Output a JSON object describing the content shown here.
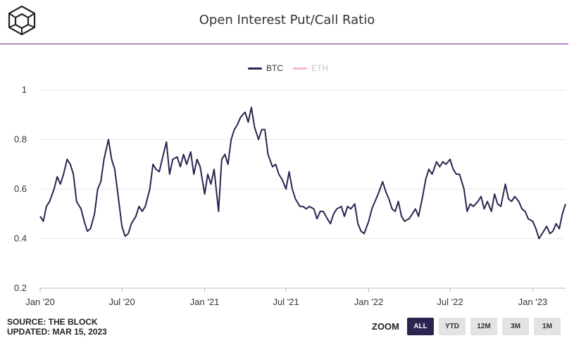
{
  "header": {
    "title": "Open Interest Put/Call Ratio"
  },
  "footer": {
    "source": "SOURCE: THE BLOCK",
    "updated": "UPDATED: MAR 15, 2023"
  },
  "zoom": {
    "label": "ZOOM",
    "buttons": [
      "ALL",
      "YTD",
      "12M",
      "3M",
      "1M"
    ],
    "active": "ALL"
  },
  "colors": {
    "accent": "#6b1f86",
    "btc": "#2a2550",
    "eth": "#f4b8c8",
    "grid": "#e6e6e6"
  },
  "chart_data": {
    "type": "line",
    "title": "Open Interest Put/Call Ratio",
    "xlabel": "",
    "ylabel": "",
    "ylim": [
      0.2,
      1
    ],
    "yticks": [
      0.2,
      0.4,
      0.6,
      0.8,
      1
    ],
    "ytick_labels": [
      "0.2",
      "0.4",
      "0.6",
      "0.8",
      "1"
    ],
    "xlim": [
      "2020-01-01",
      "2023-03-15"
    ],
    "xticks": [
      {
        "date": "2020-01-01",
        "label": "Jan '20"
      },
      {
        "date": "2020-07-01",
        "label": "Jul '20"
      },
      {
        "date": "2021-01-01",
        "label": "Jan '21"
      },
      {
        "date": "2021-07-01",
        "label": "Jul '21"
      },
      {
        "date": "2022-01-01",
        "label": "Jan '22"
      },
      {
        "date": "2022-07-01",
        "label": "Jul '22"
      },
      {
        "date": "2023-01-01",
        "label": "Jan '23"
      }
    ],
    "grid": true,
    "legend_position": "top-center",
    "series": [
      {
        "name": "BTC",
        "visible": true,
        "points": [
          [
            "2020-01-01",
            0.49
          ],
          [
            "2020-01-08",
            0.47
          ],
          [
            "2020-01-15",
            0.53
          ],
          [
            "2020-01-22",
            0.55
          ],
          [
            "2020-02-01",
            0.6
          ],
          [
            "2020-02-08",
            0.65
          ],
          [
            "2020-02-15",
            0.62
          ],
          [
            "2020-02-22",
            0.66
          ],
          [
            "2020-03-01",
            0.72
          ],
          [
            "2020-03-08",
            0.7
          ],
          [
            "2020-03-15",
            0.66
          ],
          [
            "2020-03-22",
            0.55
          ],
          [
            "2020-04-01",
            0.52
          ],
          [
            "2020-04-08",
            0.47
          ],
          [
            "2020-04-15",
            0.43
          ],
          [
            "2020-04-22",
            0.44
          ],
          [
            "2020-05-01",
            0.5
          ],
          [
            "2020-05-08",
            0.6
          ],
          [
            "2020-05-15",
            0.63
          ],
          [
            "2020-05-22",
            0.72
          ],
          [
            "2020-06-01",
            0.8
          ],
          [
            "2020-06-08",
            0.72
          ],
          [
            "2020-06-15",
            0.68
          ],
          [
            "2020-06-22",
            0.58
          ],
          [
            "2020-07-01",
            0.45
          ],
          [
            "2020-07-08",
            0.41
          ],
          [
            "2020-07-15",
            0.42
          ],
          [
            "2020-07-22",
            0.46
          ],
          [
            "2020-08-01",
            0.49
          ],
          [
            "2020-08-08",
            0.53
          ],
          [
            "2020-08-15",
            0.51
          ],
          [
            "2020-08-22",
            0.53
          ],
          [
            "2020-09-01",
            0.6
          ],
          [
            "2020-09-08",
            0.7
          ],
          [
            "2020-09-15",
            0.68
          ],
          [
            "2020-09-22",
            0.67
          ],
          [
            "2020-10-01",
            0.74
          ],
          [
            "2020-10-08",
            0.79
          ],
          [
            "2020-10-15",
            0.66
          ],
          [
            "2020-10-22",
            0.72
          ],
          [
            "2020-11-01",
            0.73
          ],
          [
            "2020-11-08",
            0.69
          ],
          [
            "2020-11-15",
            0.74
          ],
          [
            "2020-11-22",
            0.7
          ],
          [
            "2020-12-01",
            0.75
          ],
          [
            "2020-12-08",
            0.66
          ],
          [
            "2020-12-15",
            0.72
          ],
          [
            "2020-12-22",
            0.69
          ],
          [
            "2021-01-01",
            0.58
          ],
          [
            "2021-01-08",
            0.66
          ],
          [
            "2021-01-15",
            0.62
          ],
          [
            "2021-01-22",
            0.68
          ],
          [
            "2021-02-01",
            0.51
          ],
          [
            "2021-02-08",
            0.72
          ],
          [
            "2021-02-15",
            0.74
          ],
          [
            "2021-02-22",
            0.7
          ],
          [
            "2021-03-01",
            0.8
          ],
          [
            "2021-03-08",
            0.84
          ],
          [
            "2021-03-15",
            0.86
          ],
          [
            "2021-03-22",
            0.89
          ],
          [
            "2021-04-01",
            0.91
          ],
          [
            "2021-04-08",
            0.87
          ],
          [
            "2021-04-15",
            0.93
          ],
          [
            "2021-04-22",
            0.85
          ],
          [
            "2021-05-01",
            0.8
          ],
          [
            "2021-05-08",
            0.84
          ],
          [
            "2021-05-15",
            0.84
          ],
          [
            "2021-05-22",
            0.74
          ],
          [
            "2021-06-01",
            0.69
          ],
          [
            "2021-06-08",
            0.7
          ],
          [
            "2021-06-15",
            0.66
          ],
          [
            "2021-06-22",
            0.64
          ],
          [
            "2021-07-01",
            0.6
          ],
          [
            "2021-07-08",
            0.67
          ],
          [
            "2021-07-15",
            0.6
          ],
          [
            "2021-07-22",
            0.56
          ],
          [
            "2021-08-01",
            0.53
          ],
          [
            "2021-08-08",
            0.53
          ],
          [
            "2021-08-15",
            0.52
          ],
          [
            "2021-08-22",
            0.53
          ],
          [
            "2021-09-01",
            0.52
          ],
          [
            "2021-09-08",
            0.48
          ],
          [
            "2021-09-15",
            0.51
          ],
          [
            "2021-09-22",
            0.51
          ],
          [
            "2021-10-01",
            0.48
          ],
          [
            "2021-10-08",
            0.46
          ],
          [
            "2021-10-15",
            0.5
          ],
          [
            "2021-10-22",
            0.52
          ],
          [
            "2021-11-01",
            0.53
          ],
          [
            "2021-11-08",
            0.49
          ],
          [
            "2021-11-15",
            0.53
          ],
          [
            "2021-11-22",
            0.52
          ],
          [
            "2021-12-01",
            0.54
          ],
          [
            "2021-12-08",
            0.46
          ],
          [
            "2021-12-15",
            0.43
          ],
          [
            "2021-12-22",
            0.42
          ],
          [
            "2022-01-01",
            0.47
          ],
          [
            "2022-01-08",
            0.52
          ],
          [
            "2022-01-15",
            0.55
          ],
          [
            "2022-01-22",
            0.58
          ],
          [
            "2022-02-01",
            0.63
          ],
          [
            "2022-02-08",
            0.59
          ],
          [
            "2022-02-15",
            0.56
          ],
          [
            "2022-02-22",
            0.52
          ],
          [
            "2022-03-01",
            0.51
          ],
          [
            "2022-03-08",
            0.55
          ],
          [
            "2022-03-15",
            0.49
          ],
          [
            "2022-03-22",
            0.47
          ],
          [
            "2022-04-01",
            0.48
          ],
          [
            "2022-04-08",
            0.5
          ],
          [
            "2022-04-15",
            0.52
          ],
          [
            "2022-04-22",
            0.49
          ],
          [
            "2022-05-01",
            0.57
          ],
          [
            "2022-05-08",
            0.64
          ],
          [
            "2022-05-15",
            0.68
          ],
          [
            "2022-05-22",
            0.66
          ],
          [
            "2022-06-01",
            0.71
          ],
          [
            "2022-06-08",
            0.69
          ],
          [
            "2022-06-15",
            0.71
          ],
          [
            "2022-06-22",
            0.7
          ],
          [
            "2022-07-01",
            0.72
          ],
          [
            "2022-07-08",
            0.68
          ],
          [
            "2022-07-15",
            0.66
          ],
          [
            "2022-07-22",
            0.66
          ],
          [
            "2022-08-01",
            0.6
          ],
          [
            "2022-08-08",
            0.51
          ],
          [
            "2022-08-15",
            0.54
          ],
          [
            "2022-08-22",
            0.53
          ],
          [
            "2022-09-01",
            0.55
          ],
          [
            "2022-09-08",
            0.57
          ],
          [
            "2022-09-15",
            0.52
          ],
          [
            "2022-09-22",
            0.55
          ],
          [
            "2022-10-01",
            0.51
          ],
          [
            "2022-10-08",
            0.58
          ],
          [
            "2022-10-15",
            0.54
          ],
          [
            "2022-10-22",
            0.53
          ],
          [
            "2022-11-01",
            0.62
          ],
          [
            "2022-11-08",
            0.56
          ],
          [
            "2022-11-15",
            0.55
          ],
          [
            "2022-11-22",
            0.57
          ],
          [
            "2022-12-01",
            0.55
          ],
          [
            "2022-12-08",
            0.52
          ],
          [
            "2022-12-15",
            0.51
          ],
          [
            "2022-12-22",
            0.48
          ],
          [
            "2023-01-01",
            0.47
          ],
          [
            "2023-01-08",
            0.44
          ],
          [
            "2023-01-15",
            0.4
          ],
          [
            "2023-01-22",
            0.42
          ],
          [
            "2023-02-01",
            0.45
          ],
          [
            "2023-02-08",
            0.42
          ],
          [
            "2023-02-15",
            0.43
          ],
          [
            "2023-02-22",
            0.46
          ],
          [
            "2023-03-01",
            0.44
          ],
          [
            "2023-03-08",
            0.5
          ],
          [
            "2023-03-15",
            0.54
          ]
        ]
      },
      {
        "name": "ETH",
        "visible": false,
        "points": []
      }
    ]
  }
}
